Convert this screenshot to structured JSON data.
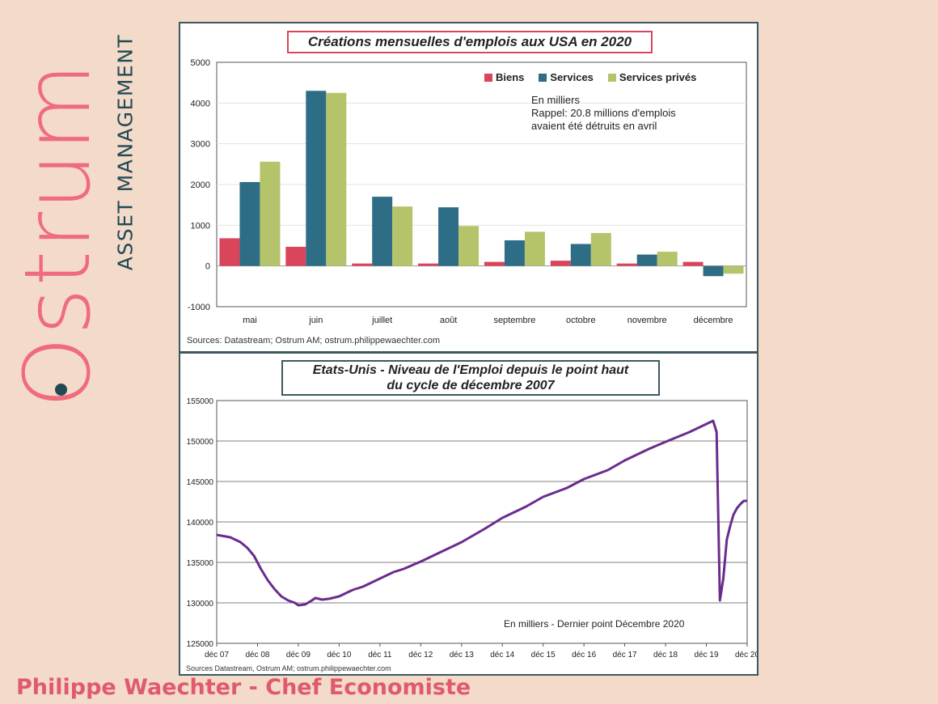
{
  "brand": {
    "name": "Ostrum",
    "tagline": "ASSET MANAGEMENT",
    "colors": {
      "pink": "#f06b7e",
      "teal": "#1f4a55"
    }
  },
  "footer": {
    "text": "Philippe Waechter - Chef Economiste"
  },
  "chart_data": [
    {
      "type": "bar",
      "title": "Créations mensuelles d'emplois aux USA en 2020",
      "categories": [
        "mai",
        "juin",
        "juillet",
        "août",
        "septembre",
        "octobre",
        "novembre",
        "décembre"
      ],
      "series": [
        {
          "name": "Biens",
          "color": "#d9455b",
          "values": [
            680,
            470,
            60,
            60,
            100,
            130,
            60,
            100
          ]
        },
        {
          "name": "Services",
          "color": "#2e6d86",
          "values": [
            2060,
            4300,
            1700,
            1440,
            630,
            540,
            280,
            -250
          ]
        },
        {
          "name": "Services privés",
          "color": "#b5c46b",
          "values": [
            2560,
            4250,
            1460,
            980,
            840,
            810,
            350,
            -190
          ]
        }
      ],
      "ylim": [
        -1000,
        5000
      ],
      "yticks": [
        -1000,
        0,
        1000,
        2000,
        3000,
        4000,
        5000
      ],
      "grid": true,
      "legend": "top-right",
      "annotation": [
        "En milliers",
        "Rappel: 20.8 millions d'emplois",
        "avaient été détruits en avril"
      ],
      "source": "Sources: Datastream;  Ostrum AM;  ostrum.philippewaechter.com"
    },
    {
      "type": "line",
      "title": "Etats-Unis - Niveau de l'Emploi depuis le point haut du cycle de décembre 2007",
      "title_lines": [
        "Etats-Unis - Niveau de l'Emploi depuis le point haut",
        "du cycle de décembre 2007"
      ],
      "xticks": [
        "déc 07",
        "déc 08",
        "déc 09",
        "déc 10",
        "déc 11",
        "déc 12",
        "déc 13",
        "déc 14",
        "déc 15",
        "déc 16",
        "déc 17",
        "déc 18",
        "déc 19",
        "déc 20"
      ],
      "xrange": [
        2007.917,
        2020.917
      ],
      "ylim": [
        125000,
        155000
      ],
      "yticks": [
        125000,
        130000,
        135000,
        140000,
        145000,
        150000,
        155000
      ],
      "grid": true,
      "series": [
        {
          "color": "#6a2c8c",
          "x": [
            2007.917,
            2008.25,
            2008.5,
            2008.667,
            2008.833,
            2009.0,
            2009.167,
            2009.333,
            2009.5,
            2009.667,
            2009.833,
            2009.917,
            2010.083,
            2010.25,
            2010.333,
            2010.5,
            2010.667,
            2010.917,
            2011.25,
            2011.5,
            2011.917,
            2012.25,
            2012.5,
            2012.917,
            2013.5,
            2013.917,
            2014.5,
            2014.917,
            2015.5,
            2015.917,
            2016.5,
            2016.917,
            2017.5,
            2017.917,
            2018.5,
            2018.917,
            2019.5,
            2019.917,
            2020.083,
            2020.167,
            2020.25,
            2020.333,
            2020.417,
            2020.5,
            2020.583,
            2020.667,
            2020.75,
            2020.833,
            2020.917
          ],
          "y": [
            138400,
            138100,
            137500,
            136800,
            135800,
            134200,
            132800,
            131700,
            130800,
            130300,
            130000,
            129700,
            129800,
            130300,
            130600,
            130400,
            130500,
            130800,
            131600,
            132000,
            133000,
            133800,
            134200,
            135100,
            136500,
            137500,
            139200,
            140500,
            141900,
            143100,
            144200,
            145300,
            146400,
            147600,
            149000,
            149900,
            151100,
            152100,
            152500,
            151100,
            130300,
            133000,
            137800,
            139500,
            140900,
            141700,
            142200,
            142600,
            142600
          ]
        }
      ],
      "annotation": "En milliers  - Dernier point Décembre 2020",
      "source": "Sources Datastream, Ostrum AM; ostrum.philippewaechter.com"
    }
  ]
}
